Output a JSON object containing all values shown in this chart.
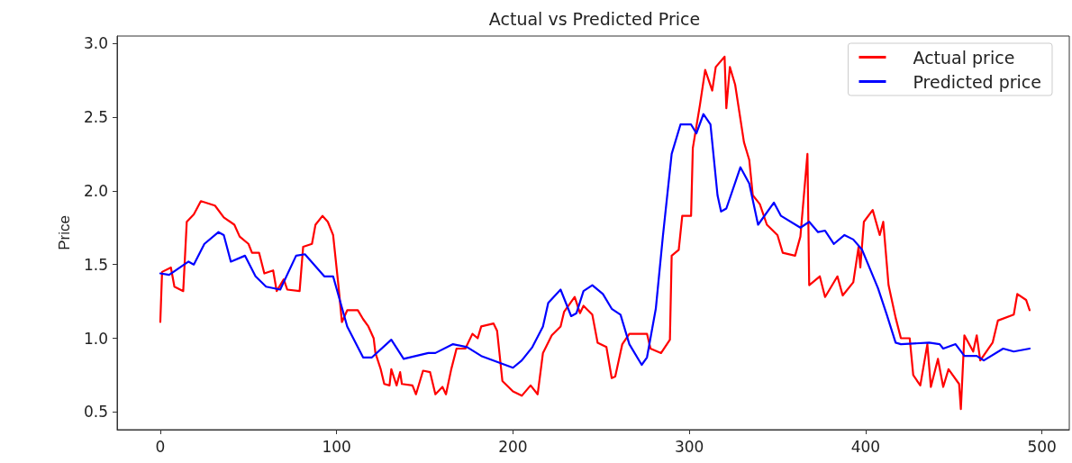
{
  "chart_data": {
    "type": "line",
    "title": "Actual vs Predicted Price",
    "ylabel": "Price",
    "xlim": [
      -24.5,
      515.5
    ],
    "ylim": [
      0.38,
      3.05
    ],
    "xticks": [
      0,
      100,
      200,
      300,
      400,
      500
    ],
    "yticks": [
      0.5,
      {
        "value": 1,
        "label": "1.0"
      },
      1.5,
      {
        "value": 2,
        "label": "2.0"
      },
      2.5,
      {
        "value": 3,
        "label": "3.0"
      }
    ],
    "grid": false,
    "legend": "top right",
    "series": [
      {
        "name": "Actual price",
        "color": "#ff0000",
        "x": [
          0,
          1,
          6,
          8,
          13,
          15,
          19,
          23,
          31,
          36,
          42,
          45,
          50,
          52,
          56,
          59,
          64,
          66,
          70,
          72,
          79,
          81,
          86,
          88,
          92,
          95,
          98,
          101,
          103,
          106,
          112,
          115,
          118,
          121,
          122,
          125,
          127,
          130,
          131,
          134,
          136,
          137,
          143,
          145,
          149,
          153,
          156,
          160,
          162,
          165,
          168,
          173,
          177,
          180,
          182,
          189,
          191,
          194,
          200,
          205,
          210,
          214,
          217,
          222,
          227,
          229,
          235,
          238,
          240,
          245,
          248,
          253,
          256,
          258,
          262,
          266,
          276,
          278,
          284,
          289,
          290,
          294,
          296,
          301,
          302,
          306,
          309,
          313,
          315,
          320,
          321,
          323,
          326,
          331,
          334,
          336,
          340,
          344,
          350,
          353,
          360,
          363,
          367,
          368,
          374,
          377,
          384,
          387,
          393,
          396,
          397,
          399,
          404,
          408,
          410,
          413,
          417,
          420,
          425,
          427,
          431,
          435,
          437,
          441,
          444,
          447,
          453,
          454,
          456,
          461,
          463,
          465,
          472,
          475,
          484,
          486,
          491,
          493
        ],
        "values": [
          1.11,
          1.45,
          1.48,
          1.35,
          1.32,
          1.79,
          1.84,
          1.93,
          1.9,
          1.82,
          1.77,
          1.69,
          1.64,
          1.58,
          1.58,
          1.44,
          1.46,
          1.32,
          1.4,
          1.33,
          1.32,
          1.62,
          1.64,
          1.77,
          1.83,
          1.79,
          1.7,
          1.36,
          1.11,
          1.19,
          1.19,
          1.13,
          1.08,
          1.0,
          0.9,
          0.79,
          0.69,
          0.68,
          0.79,
          0.68,
          0.77,
          0.69,
          0.68,
          0.62,
          0.78,
          0.77,
          0.62,
          0.67,
          0.62,
          0.79,
          0.93,
          0.93,
          1.03,
          1.0,
          1.08,
          1.1,
          1.05,
          0.71,
          0.64,
          0.61,
          0.68,
          0.62,
          0.9,
          1.02,
          1.08,
          1.18,
          1.28,
          1.17,
          1.22,
          1.16,
          0.97,
          0.94,
          0.73,
          0.74,
          0.96,
          1.03,
          1.03,
          0.93,
          0.9,
          0.99,
          1.56,
          1.6,
          1.83,
          1.83,
          2.29,
          2.58,
          2.82,
          2.68,
          2.84,
          2.91,
          2.56,
          2.84,
          2.72,
          2.33,
          2.21,
          1.97,
          1.91,
          1.77,
          1.7,
          1.58,
          1.56,
          1.69,
          2.25,
          1.36,
          1.42,
          1.28,
          1.42,
          1.29,
          1.38,
          1.62,
          1.48,
          1.79,
          1.87,
          1.7,
          1.79,
          1.36,
          1.14,
          1.0,
          1.0,
          0.75,
          0.68,
          0.96,
          0.67,
          0.86,
          0.67,
          0.79,
          0.69,
          0.52,
          1.02,
          0.91,
          1.02,
          0.85,
          0.97,
          1.12,
          1.16,
          1.3,
          1.26,
          1.19
        ]
      },
      {
        "name": "Predicted price",
        "color": "#0000ff",
        "x": [
          0,
          5,
          16,
          19,
          25,
          33,
          36,
          40,
          48,
          54,
          60,
          68,
          77,
          82,
          93,
          98,
          106,
          115,
          120,
          131,
          138,
          152,
          156,
          166,
          174,
          182,
          200,
          205,
          211,
          217,
          220,
          227,
          233,
          236,
          240,
          245,
          251,
          256,
          261,
          266,
          273,
          276,
          281,
          285,
          290,
          295,
          301,
          304,
          308,
          312,
          316,
          318,
          321,
          329,
          334,
          339,
          348,
          352,
          363,
          368,
          373,
          377,
          382,
          388,
          393,
          398,
          407,
          412,
          417,
          420,
          436,
          442,
          444,
          451,
          456,
          463,
          467,
          478,
          484,
          493
        ],
        "values": [
          1.44,
          1.43,
          1.52,
          1.5,
          1.64,
          1.72,
          1.7,
          1.52,
          1.56,
          1.42,
          1.35,
          1.33,
          1.56,
          1.57,
          1.42,
          1.42,
          1.08,
          0.87,
          0.87,
          0.99,
          0.86,
          0.9,
          0.9,
          0.96,
          0.94,
          0.88,
          0.8,
          0.85,
          0.94,
          1.08,
          1.24,
          1.33,
          1.15,
          1.17,
          1.32,
          1.36,
          1.3,
          1.2,
          1.16,
          0.96,
          0.82,
          0.87,
          1.2,
          1.69,
          2.25,
          2.45,
          2.45,
          2.39,
          2.52,
          2.45,
          1.97,
          1.86,
          1.88,
          2.16,
          2.05,
          1.77,
          1.92,
          1.83,
          1.75,
          1.79,
          1.72,
          1.73,
          1.64,
          1.7,
          1.67,
          1.6,
          1.34,
          1.16,
          0.97,
          0.96,
          0.97,
          0.96,
          0.93,
          0.96,
          0.88,
          0.88,
          0.85,
          0.93,
          0.91,
          0.93
        ]
      }
    ]
  }
}
